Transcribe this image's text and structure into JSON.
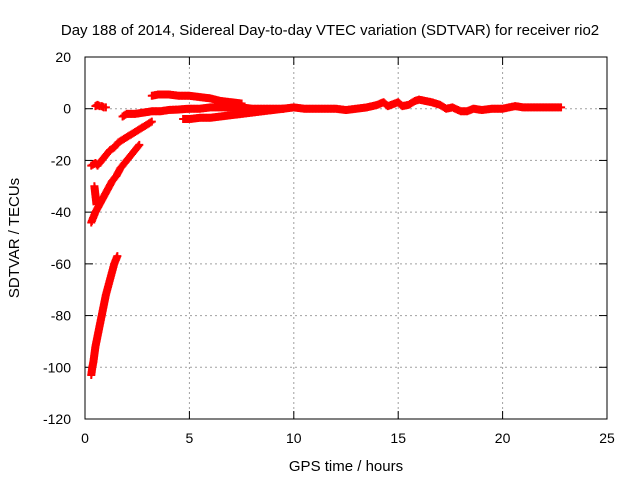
{
  "chart_data": {
    "type": "scatter",
    "title": "Day 188 of 2014, Sidereal Day-to-day VTEC variation (SDTVAR) for receiver rio2",
    "xlabel": "GPS time / hours",
    "ylabel": "SDTVAR / TECUs",
    "xlim": [
      0,
      25
    ],
    "ylim": [
      -120,
      20
    ],
    "xticks": [
      0,
      5,
      10,
      15,
      20,
      25
    ],
    "yticks": [
      20,
      0,
      -20,
      -40,
      -60,
      -80,
      -100,
      -120
    ],
    "grid": true,
    "legend": "none",
    "marker": "plus",
    "color": "#ff0000",
    "series": [
      {
        "x": [
          0.3,
          0.35,
          0.4,
          0.45,
          0.5,
          0.6,
          0.7,
          0.8,
          0.9,
          1.0,
          1.1,
          1.2,
          1.3,
          1.4,
          1.5,
          1.55
        ],
        "y": [
          -103,
          -100,
          -98,
          -95,
          -92,
          -88,
          -84,
          -80,
          -76,
          -72,
          -69,
          -66,
          -63,
          -60,
          -58,
          -57
        ]
      },
      {
        "x": [
          0.3,
          0.5,
          0.7,
          0.9,
          1.1,
          1.3,
          1.5,
          1.7,
          1.9,
          2.1,
          2.3,
          2.5,
          2.6
        ],
        "y": [
          -44,
          -40,
          -37,
          -34,
          -31,
          -28,
          -26,
          -23,
          -21,
          -19,
          -17,
          -15,
          -14
        ]
      },
      {
        "x": [
          0.3,
          0.5,
          0.6,
          0.8,
          1.0,
          1.2,
          1.4,
          1.6,
          1.8,
          2.0,
          2.2,
          2.4,
          2.6,
          2.8,
          3.0,
          3.2
        ],
        "y": [
          -22,
          -21,
          -22,
          -20,
          -18,
          -16,
          -15,
          -13,
          -12,
          -11,
          -10,
          -9,
          -8,
          -7,
          -6,
          -5
        ]
      },
      {
        "x": [
          0.45,
          0.55
        ],
        "y": [
          -30,
          -37
        ]
      },
      {
        "x": [
          0.5,
          0.6,
          0.7,
          0.8,
          0.9,
          1.0
        ],
        "y": [
          1,
          1.5,
          1,
          1,
          0.5,
          0.5
        ]
      },
      {
        "x": [
          1.8,
          2.0,
          2.4,
          2.8,
          3.2,
          3.6,
          4.0,
          4.5,
          5.0,
          5.5,
          6.0,
          6.5,
          7.0,
          7.5,
          8.0,
          8.5,
          9.0,
          9.5
        ],
        "y": [
          -3,
          -2,
          -2,
          -1.5,
          -1,
          -1,
          -0.5,
          -0.3,
          0,
          0,
          0.5,
          0.5,
          0.5,
          0.5,
          0,
          0,
          0,
          0
        ]
      },
      {
        "x": [
          3.2,
          3.5,
          4.0,
          4.5,
          5.0,
          5.5,
          6.0,
          6.5,
          7.0,
          7.5
        ],
        "y": [
          5,
          5.5,
          5.5,
          5,
          5,
          4.5,
          4,
          3,
          2.5,
          2
        ]
      },
      {
        "x": [
          4.7,
          5.0,
          5.5,
          6.0,
          6.5,
          7.0,
          7.5,
          8.0,
          8.5,
          9.0,
          9.5
        ],
        "y": [
          -4,
          -4,
          -3.5,
          -3.5,
          -3,
          -2.5,
          -2,
          -1.5,
          -1,
          -0.5,
          0
        ]
      },
      {
        "x": [
          9.5,
          10.0,
          10.5,
          11.0,
          11.5,
          12.0,
          12.5,
          13.0,
          13.5,
          14.0,
          14.3,
          14.5,
          15.0,
          15.2,
          15.5,
          15.8,
          16.0,
          16.3,
          16.6,
          17.0,
          17.3,
          17.6,
          18.0,
          18.3,
          18.6,
          19.0,
          19.5,
          20.0,
          20.3,
          20.6,
          21.0,
          21.5,
          22.0,
          22.5,
          22.8
        ],
        "y": [
          0,
          0.5,
          0,
          0,
          0,
          0,
          -0.5,
          0,
          0.5,
          1.5,
          2.5,
          1,
          2.5,
          1,
          1.5,
          3,
          3.5,
          3,
          2.5,
          1.5,
          0,
          0.5,
          -1,
          -1,
          0,
          -0.5,
          0,
          0,
          0.5,
          1,
          0.5,
          0.5,
          0.5,
          0.5,
          0.5
        ]
      }
    ]
  }
}
